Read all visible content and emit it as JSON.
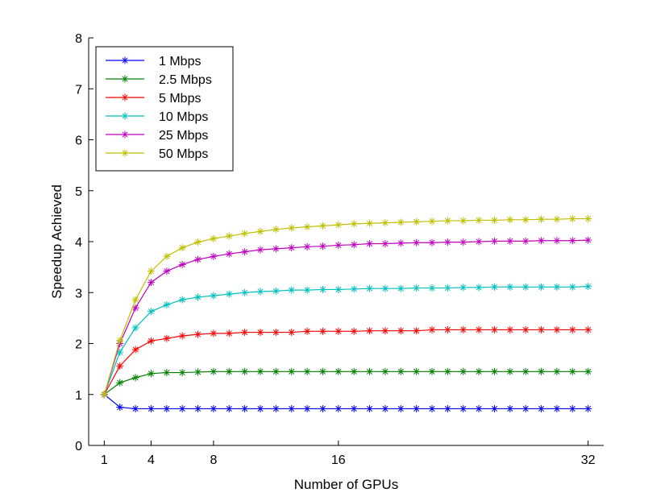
{
  "chart_data": {
    "type": "line",
    "title": "",
    "xlabel": "Number of GPUs",
    "ylabel": "Speedup Achieved",
    "xlim": [
      0,
      33
    ],
    "ylim": [
      0,
      8
    ],
    "xticks": [
      1,
      4,
      8,
      16,
      32
    ],
    "yticks": [
      0,
      1,
      2,
      3,
      4,
      5,
      6,
      7,
      8
    ],
    "grid": false,
    "legend_position": "top-left",
    "marker": "asterisk",
    "x": [
      1,
      2,
      3,
      4,
      5,
      6,
      7,
      8,
      9,
      10,
      11,
      12,
      13,
      14,
      15,
      16,
      17,
      18,
      19,
      20,
      21,
      22,
      23,
      24,
      25,
      26,
      27,
      28,
      29,
      30,
      31,
      32
    ],
    "series": [
      {
        "name": "1 Mbps",
        "color": "#0000ff",
        "values": [
          1,
          0.75,
          0.72,
          0.72,
          0.72,
          0.72,
          0.72,
          0.72,
          0.72,
          0.72,
          0.72,
          0.72,
          0.72,
          0.72,
          0.72,
          0.72,
          0.72,
          0.72,
          0.72,
          0.72,
          0.72,
          0.72,
          0.72,
          0.72,
          0.72,
          0.72,
          0.72,
          0.72,
          0.72,
          0.72,
          0.72,
          0.72
        ]
      },
      {
        "name": "2.5 Mbps",
        "color": "#008000",
        "values": [
          1,
          1.23,
          1.33,
          1.41,
          1.43,
          1.43,
          1.44,
          1.45,
          1.45,
          1.45,
          1.45,
          1.45,
          1.45,
          1.45,
          1.45,
          1.45,
          1.45,
          1.45,
          1.45,
          1.45,
          1.45,
          1.45,
          1.45,
          1.45,
          1.45,
          1.45,
          1.45,
          1.45,
          1.45,
          1.45,
          1.45,
          1.45
        ]
      },
      {
        "name": "5 Mbps",
        "color": "#ff0000",
        "values": [
          1,
          1.56,
          1.88,
          2.05,
          2.1,
          2.15,
          2.18,
          2.2,
          2.2,
          2.22,
          2.22,
          2.22,
          2.22,
          2.24,
          2.24,
          2.24,
          2.24,
          2.25,
          2.25,
          2.25,
          2.25,
          2.27,
          2.27,
          2.27,
          2.27,
          2.27,
          2.27,
          2.27,
          2.27,
          2.27,
          2.27,
          2.27
        ]
      },
      {
        "name": "10 Mbps",
        "color": "#00bfbf",
        "values": [
          1,
          1.83,
          2.31,
          2.63,
          2.76,
          2.86,
          2.91,
          2.94,
          2.97,
          3.0,
          3.02,
          3.03,
          3.05,
          3.05,
          3.06,
          3.06,
          3.07,
          3.08,
          3.08,
          3.08,
          3.09,
          3.09,
          3.09,
          3.1,
          3.1,
          3.11,
          3.11,
          3.11,
          3.11,
          3.11,
          3.11,
          3.12
        ]
      },
      {
        "name": "25 Mbps",
        "color": "#bf00bf",
        "values": [
          1,
          2.0,
          2.7,
          3.2,
          3.42,
          3.55,
          3.65,
          3.71,
          3.76,
          3.8,
          3.84,
          3.86,
          3.88,
          3.9,
          3.91,
          3.93,
          3.94,
          3.96,
          3.96,
          3.97,
          3.98,
          3.98,
          3.99,
          3.99,
          4.0,
          4.01,
          4.01,
          4.01,
          4.02,
          4.02,
          4.02,
          4.03
        ]
      },
      {
        "name": "50 Mbps",
        "color": "#bfbf00",
        "values": [
          1,
          2.06,
          2.86,
          3.42,
          3.71,
          3.88,
          3.99,
          4.06,
          4.11,
          4.16,
          4.2,
          4.24,
          4.27,
          4.29,
          4.31,
          4.33,
          4.35,
          4.36,
          4.37,
          4.38,
          4.39,
          4.4,
          4.41,
          4.41,
          4.42,
          4.42,
          4.43,
          4.43,
          4.44,
          4.44,
          4.45,
          4.45
        ]
      }
    ]
  }
}
